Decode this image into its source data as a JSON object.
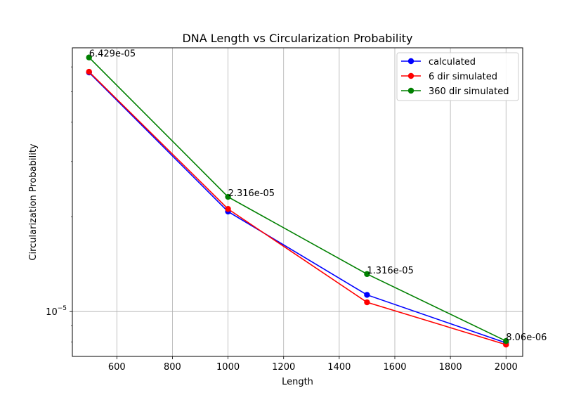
{
  "chart_data": {
    "type": "line",
    "title": "DNA Length vs Circularization Probability",
    "xlabel": "Length",
    "ylabel": "Circularization Probability",
    "x": [
      500,
      1000,
      1500,
      2000
    ],
    "xlim": [
      440,
      2060
    ],
    "xticks": [
      600,
      800,
      1000,
      1200,
      1400,
      1600,
      1800,
      2000
    ],
    "xtick_labels": [
      "600",
      "800",
      "1000",
      "1200",
      "1400",
      "1600",
      "1800",
      "2000"
    ],
    "yscale": "log",
    "ylim": [
      7.2e-06,
      6.9e-05
    ],
    "yticks": [
      1e-05
    ],
    "ytick_labels": [
      {
        "base": "10",
        "exp": "−5"
      }
    ],
    "grid": true,
    "legend": "top-right",
    "series": [
      {
        "name": "calculated",
        "color": "#0000ff",
        "values": [
          5.76e-05,
          2.08e-05,
          1.13e-05,
          7.95e-06
        ]
      },
      {
        "name": "6 dir simulated",
        "color": "#ff0000",
        "values": [
          5.79e-05,
          2.12e-05,
          1.07e-05,
          7.85e-06
        ]
      },
      {
        "name": "360 dir simulated",
        "color": "#008000",
        "values": [
          6.429e-05,
          2.316e-05,
          1.316e-05,
          8.06e-06
        ]
      }
    ],
    "annotations": [
      {
        "x": 500,
        "y": 6.429e-05,
        "text": "6.429e-05"
      },
      {
        "x": 1000,
        "y": 2.316e-05,
        "text": "2.316e-05"
      },
      {
        "x": 1500,
        "y": 1.316e-05,
        "text": "1.316e-05"
      },
      {
        "x": 2000,
        "y": 8.06e-06,
        "text": "8.06e-06"
      }
    ]
  }
}
